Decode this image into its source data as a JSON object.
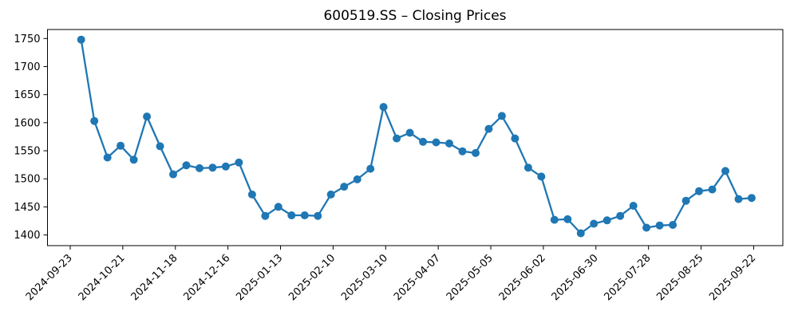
{
  "figure": {
    "background": "#ffffff",
    "text_color": "#000000"
  },
  "chart_data": {
    "type": "line",
    "title": "600519.SS – Closing Prices",
    "xlabel": "",
    "ylabel": "",
    "grid": false,
    "legend": null,
    "ylim": [
      1381,
      1766
    ],
    "y_ticks": [
      1400,
      1450,
      1500,
      1550,
      1600,
      1650,
      1700,
      1750
    ],
    "x_tick_labels": [
      "2024-09-23",
      "2024-10-21",
      "2024-11-18",
      "2024-12-16",
      "2025-01-13",
      "2025-02-10",
      "2025-03-10",
      "2025-04-07",
      "2025-05-05",
      "2025-06-02",
      "2025-06-30",
      "2025-07-28",
      "2025-08-25",
      "2025-09-22"
    ],
    "series": [
      {
        "name": "Closing Price",
        "color": "#1f77b4",
        "marker": "circle",
        "x": [
          "2024-09-29",
          "2024-10-06",
          "2024-10-13",
          "2024-10-20",
          "2024-10-27",
          "2024-11-03",
          "2024-11-10",
          "2024-11-17",
          "2024-11-24",
          "2024-12-01",
          "2024-12-08",
          "2024-12-15",
          "2024-12-22",
          "2024-12-29",
          "2025-01-05",
          "2025-01-12",
          "2025-01-19",
          "2025-01-26",
          "2025-02-02",
          "2025-02-09",
          "2025-02-16",
          "2025-02-23",
          "2025-03-02",
          "2025-03-09",
          "2025-03-16",
          "2025-03-23",
          "2025-03-30",
          "2025-04-06",
          "2025-04-13",
          "2025-04-20",
          "2025-04-27",
          "2025-05-04",
          "2025-05-11",
          "2025-05-18",
          "2025-05-25",
          "2025-06-01",
          "2025-06-08",
          "2025-06-15",
          "2025-06-22",
          "2025-06-29",
          "2025-07-06",
          "2025-07-13",
          "2025-07-20",
          "2025-07-27",
          "2025-08-03",
          "2025-08-10",
          "2025-08-17",
          "2025-08-24",
          "2025-08-31",
          "2025-09-07",
          "2025-09-14",
          "2025-09-21"
        ],
        "values": [
          1748,
          1603,
          1538,
          1559,
          1534,
          1611,
          1558,
          1508,
          1524,
          1519,
          1520,
          1522,
          1529,
          1472,
          1434,
          1450,
          1435,
          1435,
          1434,
          1472,
          1486,
          1499,
          1518,
          1628,
          1572,
          1582,
          1566,
          1565,
          1563,
          1549,
          1546,
          1589,
          1612,
          1572,
          1520,
          1504,
          1427,
          1428,
          1403,
          1420,
          1426,
          1434,
          1452,
          1413,
          1417,
          1418,
          1461,
          1478,
          1481,
          1514,
          1464,
          1466
        ]
      }
    ]
  }
}
